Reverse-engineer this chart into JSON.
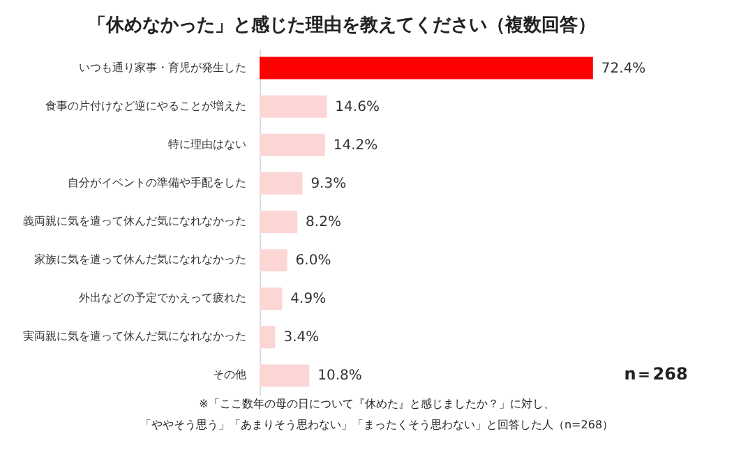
{
  "chart_data": {
    "type": "bar",
    "orientation": "horizontal",
    "title": "「休めなかった」と感じた理由を教えてください（複数回答）",
    "categories": [
      "いつも通り家事・育児が発生した",
      "食事の片付けなど逆にやることが増えた",
      "特に理由はない",
      "自分がイベントの準備や手配をした",
      "義両親に気を遣って休んだ気になれなかった",
      "家族に気を遣って休んだ気になれなかった",
      "外出などの予定でかえって疲れた",
      "実両親に気を遣って休んだ気になれなかった",
      "その他"
    ],
    "values": [
      72.4,
      14.6,
      14.2,
      9.3,
      8.2,
      6.0,
      4.9,
      3.4,
      10.8
    ],
    "colors": [
      "#ff0000",
      "#fcd5d5",
      "#fcd5d5",
      "#fcd5d5",
      "#fcd5d5",
      "#fcd5d5",
      "#fcd5d5",
      "#fcd5d5",
      "#fcd5d5"
    ],
    "value_labels": [
      "72.4%",
      "14.6%",
      "14.2%",
      "9.3%",
      "8.2%",
      "6.0%",
      "4.9%",
      "3.4%",
      "10.8%"
    ],
    "annotations": [
      "n＝268",
      "※「ここ数年の母の日について『休めた』と感じましたか？」に対し、",
      "「ややそう思う」「あまりそう思わない」「まったくそう思わない」と回答した人（n=268）"
    ]
  }
}
